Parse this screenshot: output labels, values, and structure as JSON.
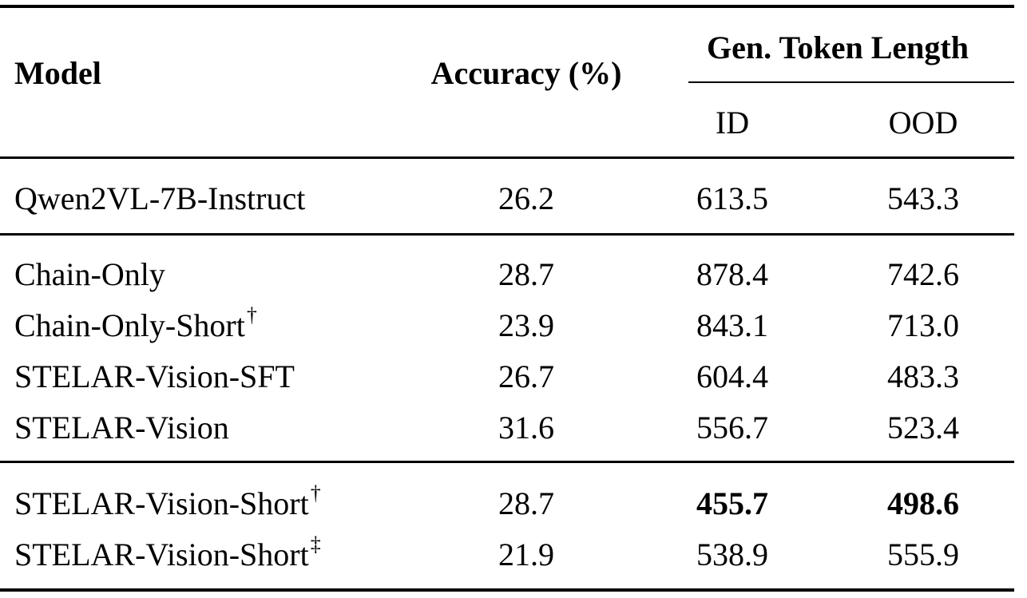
{
  "table": {
    "header": {
      "model": "Model",
      "accuracy": "Accuracy (%)",
      "group": "Gen. Token Length",
      "id": "ID",
      "ood": "OOD"
    },
    "rows": [
      {
        "model": "Qwen2VL-7B-Instruct",
        "sup": "",
        "accuracy": "26.2",
        "id": "613.5",
        "ood": "543.3"
      },
      {
        "model": "Chain-Only",
        "sup": "",
        "accuracy": "28.7",
        "id": "878.4",
        "ood": "742.6"
      },
      {
        "model": "Chain-Only-Short",
        "sup": "†",
        "accuracy": "23.9",
        "id": "843.1",
        "ood": "713.0"
      },
      {
        "model": "STELAR-Vision-SFT",
        "sup": "",
        "accuracy": "26.7",
        "id": "604.4",
        "ood": "483.3"
      },
      {
        "model": "STELAR-Vision",
        "sup": "",
        "accuracy": "31.6",
        "id": "556.7",
        "ood": "523.4"
      },
      {
        "model": "STELAR-Vision-Short",
        "sup": "†",
        "accuracy": "28.7",
        "id": "455.7",
        "ood": "498.6",
        "bold": [
          "id",
          "ood"
        ]
      },
      {
        "model": "STELAR-Vision-Short",
        "sup": "‡",
        "accuracy": "21.9",
        "id": "538.9",
        "ood": "555.9"
      }
    ]
  }
}
